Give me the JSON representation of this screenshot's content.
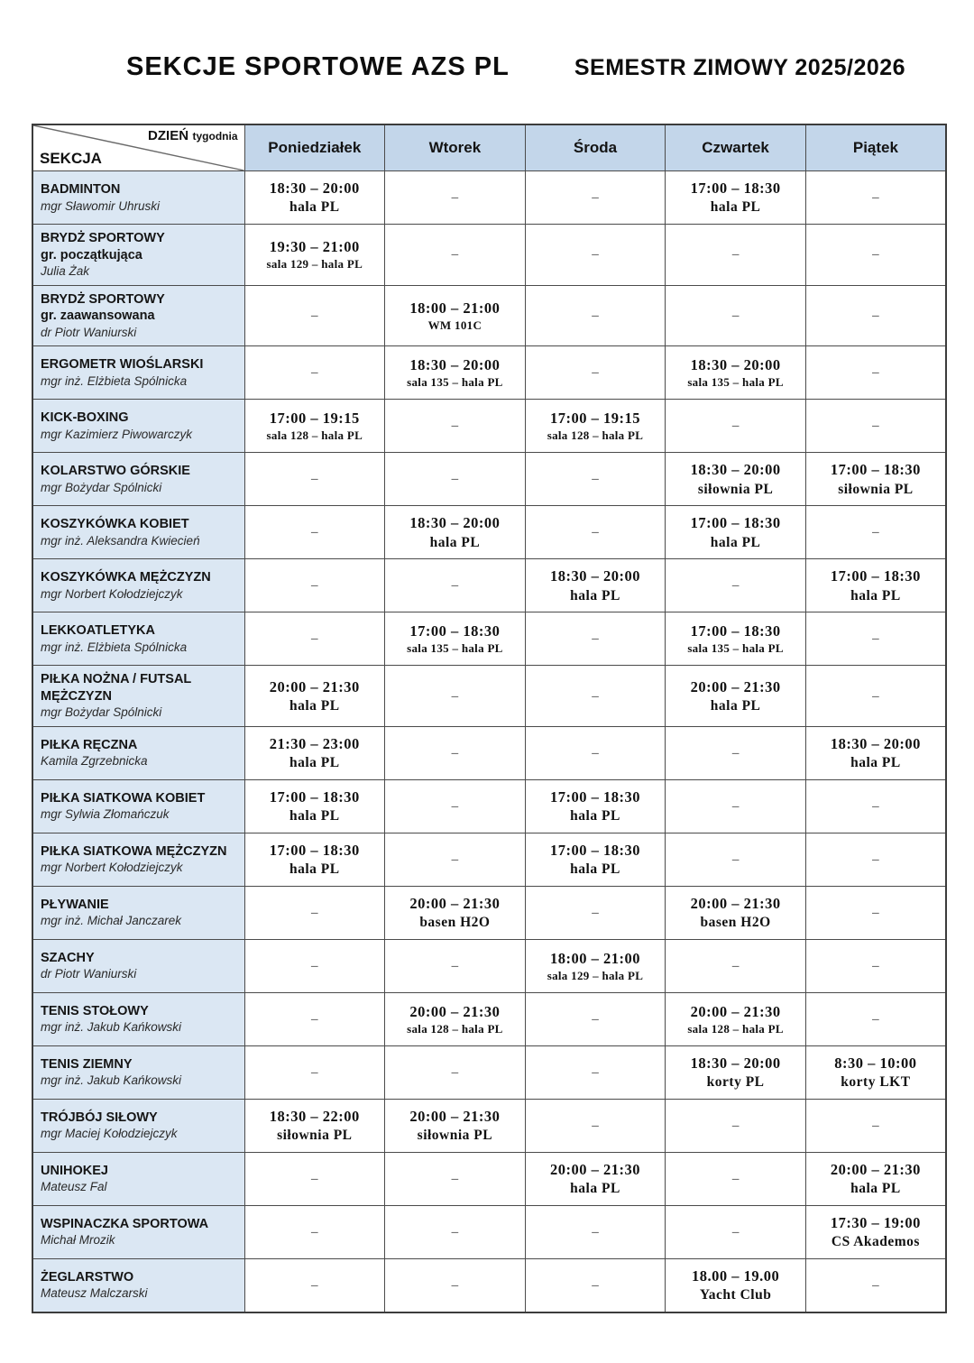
{
  "page": {
    "title_left": "SEKCJE SPORTOWE AZS PL",
    "title_right": "SEMESTR ZIMOWY 2025/2026"
  },
  "table": {
    "corner": {
      "top_main": "DZIEŃ",
      "top_suffix": "tygodnia",
      "bottom": "SEKCJA"
    },
    "days": [
      "Poniedziałek",
      "Wtorek",
      "Środa",
      "Czwartek",
      "Piątek"
    ],
    "empty_marker": "–",
    "colors": {
      "day_header_bg": "#c3d6ea",
      "section_col_bg": "#dbe7f3",
      "border": "#4b4b4b"
    },
    "rows": [
      {
        "section": "BADMINTON",
        "coach": "mgr Sławomir Uhruski",
        "cells": [
          {
            "time": "18:30 – 20:00",
            "place": "hala PL"
          },
          null,
          null,
          {
            "time": "17:00 – 18:30",
            "place": "hala PL"
          },
          null
        ]
      },
      {
        "section": "BRYDŻ SPORTOWY",
        "subtitle": "gr. początkująca",
        "coach": "Julia Żak",
        "cells": [
          {
            "time": "19:30 – 21:00",
            "place": "sala 129 – hala PL"
          },
          null,
          null,
          null,
          null
        ]
      },
      {
        "section": "BRYDŻ SPORTOWY",
        "subtitle": "gr. zaawansowana",
        "coach": "dr Piotr Waniurski",
        "cells": [
          null,
          {
            "time": "18:00 – 21:00",
            "place": "WM 101C"
          },
          null,
          null,
          null
        ]
      },
      {
        "section": "ERGOMETR WIOŚLARSKI",
        "coach": "mgr inż. Elżbieta Spólnicka",
        "cells": [
          null,
          {
            "time": "18:30 – 20:00",
            "place": "sala 135 – hala PL"
          },
          null,
          {
            "time": "18:30 – 20:00",
            "place": "sala 135 – hala PL"
          },
          null
        ]
      },
      {
        "section": "KICK-BOXING",
        "coach": "mgr Kazimierz Piwowarczyk",
        "cells": [
          {
            "time": "17:00 – 19:15",
            "place": "sala 128 – hala PL"
          },
          null,
          {
            "time": "17:00 – 19:15",
            "place": "sala 128 – hala PL"
          },
          null,
          null
        ]
      },
      {
        "section": "KOLARSTWO GÓRSKIE",
        "coach": "mgr Bożydar Spólnicki",
        "cells": [
          null,
          null,
          null,
          {
            "time": "18:30 – 20:00",
            "place": "siłownia PL"
          },
          {
            "time": "17:00 – 18:30",
            "place": "siłownia PL"
          }
        ]
      },
      {
        "section": "KOSZYKÓWKA KOBIET",
        "coach": "mgr inż. Aleksandra Kwiecień",
        "cells": [
          null,
          {
            "time": "18:30 – 20:00",
            "place": "hala PL"
          },
          null,
          {
            "time": "17:00 – 18:30",
            "place": "hala PL"
          },
          null
        ]
      },
      {
        "section": "KOSZYKÓWKA MĘŻCZYZN",
        "coach": "mgr Norbert Kołodziejczyk",
        "cells": [
          null,
          null,
          {
            "time": "18:30 – 20:00",
            "place": "hala PL"
          },
          null,
          {
            "time": "17:00 – 18:30",
            "place": "hala PL"
          }
        ]
      },
      {
        "section": "LEKKOATLETYKA",
        "coach": "mgr inż. Elżbieta Spólnicka",
        "cells": [
          null,
          {
            "time": "17:00 – 18:30",
            "place": "sala 135 – hala PL"
          },
          null,
          {
            "time": "17:00 – 18:30",
            "place": "sala 135 – hala PL"
          },
          null
        ]
      },
      {
        "section": "PIŁKA NOŻNA / FUTSAL MĘŻCZYZN",
        "coach": "mgr Bożydar Spólnicki",
        "cells": [
          {
            "time": "20:00 – 21:30",
            "place": "hala PL"
          },
          null,
          null,
          {
            "time": "20:00 – 21:30",
            "place": "hala PL"
          },
          null
        ]
      },
      {
        "section": "PIŁKA RĘCZNA",
        "coach": "Kamila Zgrzebnicka",
        "cells": [
          {
            "time": "21:30 – 23:00",
            "place": "hala PL"
          },
          null,
          null,
          null,
          {
            "time": "18:30 – 20:00",
            "place": "hala PL"
          }
        ]
      },
      {
        "section": "PIŁKA SIATKOWA KOBIET",
        "coach": "mgr Sylwia Złomańczuk",
        "cells": [
          {
            "time": "17:00 – 18:30",
            "place": "hala PL"
          },
          null,
          {
            "time": "17:00 – 18:30",
            "place": "hala PL"
          },
          null,
          null
        ]
      },
      {
        "section": "PIŁKA SIATKOWA MĘŻCZYZN",
        "coach": "mgr Norbert Kołodziejczyk",
        "cells": [
          {
            "time": "17:00 – 18:30",
            "place": "hala PL"
          },
          null,
          {
            "time": "17:00 – 18:30",
            "place": "hala PL"
          },
          null,
          null
        ]
      },
      {
        "section": "PŁYWANIE",
        "coach": "mgr inż. Michał Janczarek",
        "cells": [
          null,
          {
            "time": "20:00 – 21:30",
            "place": "basen H2O"
          },
          null,
          {
            "time": "20:00 – 21:30",
            "place": "basen H2O"
          },
          null
        ]
      },
      {
        "section": "SZACHY",
        "coach": "dr Piotr Waniurski",
        "cells": [
          null,
          null,
          {
            "time": "18:00 – 21:00",
            "place": "sala 129 – hala PL"
          },
          null,
          null
        ]
      },
      {
        "section": "TENIS STOŁOWY",
        "coach": "mgr inż. Jakub Kańkowski",
        "cells": [
          null,
          {
            "time": "20:00 – 21:30",
            "place": "sala 128 – hala PL"
          },
          null,
          {
            "time": "20:00 – 21:30",
            "place": "sala 128 – hala PL"
          },
          null
        ]
      },
      {
        "section": "TENIS ZIEMNY",
        "coach": "mgr inż. Jakub Kańkowski",
        "cells": [
          null,
          null,
          null,
          {
            "time": "18:30 – 20:00",
            "place": "korty PL"
          },
          {
            "time": "8:30 – 10:00",
            "place": "korty LKT"
          }
        ]
      },
      {
        "section": "TRÓJBÓJ SIŁOWY",
        "coach": "mgr Maciej Kołodziejczyk",
        "cells": [
          {
            "time": "18:30 – 22:00",
            "place": "siłownia PL"
          },
          {
            "time": "20:00 – 21:30",
            "place": "siłownia PL"
          },
          null,
          null,
          null
        ]
      },
      {
        "section": "UNIHOKEJ",
        "coach": "Mateusz Fal",
        "cells": [
          null,
          null,
          {
            "time": "20:00 – 21:30",
            "place": "hala PL"
          },
          null,
          {
            "time": "20:00 – 21:30",
            "place": "hala PL"
          }
        ]
      },
      {
        "section": "WSPINACZKA SPORTOWA",
        "coach": "Michał Mrozik",
        "cells": [
          null,
          null,
          null,
          null,
          {
            "time": "17:30 – 19:00",
            "place": "CS Akademos"
          }
        ]
      },
      {
        "section": "ŻEGLARSTWO",
        "coach": "Mateusz Malczarski",
        "cells": [
          null,
          null,
          null,
          {
            "time": "18.00 – 19.00",
            "place": "Yacht Club"
          },
          null
        ]
      }
    ]
  }
}
